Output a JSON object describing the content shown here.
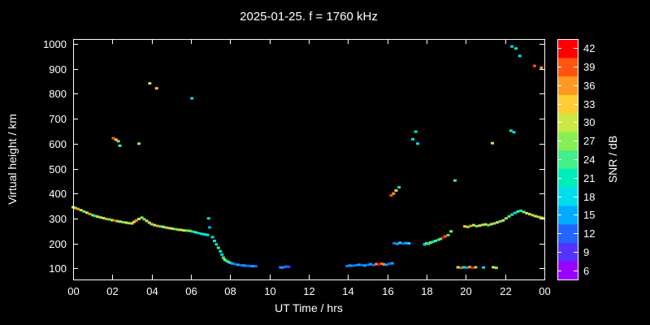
{
  "chart_data": {
    "type": "scatter",
    "title": "2025-01-25. f = 1760 kHz",
    "xlabel": "UT Time / hrs",
    "ylabel": "Virtual height / km",
    "background": "#000000",
    "text_color": "#ffffff",
    "xlim": [
      0,
      24
    ],
    "ylim_km": [
      55,
      1020
    ],
    "x_ticks": [
      {
        "label": "00",
        "value": 0
      },
      {
        "label": "02",
        "value": 2
      },
      {
        "label": "04",
        "value": 4
      },
      {
        "label": "06",
        "value": 6
      },
      {
        "label": "08",
        "value": 8
      },
      {
        "label": "10",
        "value": 10
      },
      {
        "label": "12",
        "value": 12
      },
      {
        "label": "14",
        "value": 14
      },
      {
        "label": "16",
        "value": 16
      },
      {
        "label": "18",
        "value": 18
      },
      {
        "label": "20",
        "value": 20
      },
      {
        "label": "22",
        "value": 22
      },
      {
        "label": "00",
        "value": 24
      }
    ],
    "y_ticks": [
      100,
      200,
      300,
      400,
      500,
      600,
      700,
      800,
      900,
      1000
    ],
    "colorbar": {
      "label": "SNR / dB",
      "ticks": [
        6,
        9,
        12,
        15,
        18,
        21,
        24,
        27,
        30,
        33,
        36,
        39,
        42
      ],
      "range": [
        4.5,
        43.5
      ],
      "colors": [
        "#9900ff",
        "#5533ff",
        "#2266ff",
        "#00aaff",
        "#00ddee",
        "#00eebb",
        "#44ee88",
        "#88ee55",
        "#cce844",
        "#ffcc33",
        "#ff9922",
        "#ff5511",
        "#ff0000"
      ]
    },
    "points": [
      [
        0.0,
        345,
        33
      ],
      [
        0.12,
        342,
        27
      ],
      [
        0.25,
        338,
        36
      ],
      [
        0.4,
        333,
        30
      ],
      [
        0.55,
        328,
        24
      ],
      [
        0.7,
        323,
        30
      ],
      [
        0.85,
        318,
        36
      ],
      [
        1.0,
        313,
        27
      ],
      [
        1.12,
        310,
        21
      ],
      [
        1.25,
        307,
        33
      ],
      [
        1.4,
        304,
        27
      ],
      [
        1.55,
        301,
        30
      ],
      [
        1.7,
        298,
        36
      ],
      [
        1.85,
        296,
        24
      ],
      [
        2.0,
        293,
        30
      ],
      [
        2.12,
        291,
        39
      ],
      [
        2.25,
        289,
        27
      ],
      [
        2.4,
        287,
        33
      ],
      [
        2.55,
        285,
        24
      ],
      [
        2.7,
        283,
        30
      ],
      [
        2.85,
        281,
        27
      ],
      [
        3.0,
        280,
        33
      ],
      [
        3.1,
        286,
        30
      ],
      [
        3.22,
        292,
        36
      ],
      [
        3.35,
        298,
        33
      ],
      [
        3.5,
        303,
        27
      ],
      [
        3.62,
        297,
        24
      ],
      [
        3.75,
        290,
        30
      ],
      [
        3.88,
        283,
        33
      ],
      [
        4.0,
        277,
        27
      ],
      [
        4.15,
        273,
        30
      ],
      [
        4.3,
        270,
        36
      ],
      [
        4.45,
        268,
        24
      ],
      [
        4.6,
        266,
        30
      ],
      [
        4.75,
        263,
        27
      ],
      [
        4.9,
        261,
        33
      ],
      [
        5.05,
        259,
        30
      ],
      [
        5.2,
        257,
        24
      ],
      [
        5.35,
        255,
        27
      ],
      [
        5.5,
        254,
        33
      ],
      [
        5.65,
        252,
        30
      ],
      [
        5.8,
        251,
        24
      ],
      [
        5.95,
        250,
        27
      ],
      [
        6.1,
        247,
        21
      ],
      [
        6.25,
        244,
        24
      ],
      [
        6.4,
        241,
        18
      ],
      [
        6.55,
        238,
        21
      ],
      [
        6.7,
        236,
        18
      ],
      [
        6.85,
        234,
        21
      ],
      [
        6.9,
        300,
        18
      ],
      [
        6.95,
        264,
        15
      ],
      [
        7.1,
        225,
        18
      ],
      [
        7.2,
        210,
        21
      ],
      [
        7.3,
        196,
        18
      ],
      [
        7.4,
        182,
        24
      ],
      [
        7.5,
        168,
        21
      ],
      [
        7.58,
        155,
        18
      ],
      [
        7.65,
        143,
        24
      ],
      [
        7.72,
        135,
        27
      ],
      [
        7.8,
        130,
        21
      ],
      [
        7.9,
        126,
        24
      ],
      [
        8.0,
        122,
        18
      ],
      [
        8.12,
        119,
        15
      ],
      [
        8.25,
        116,
        12
      ],
      [
        8.4,
        114,
        15
      ],
      [
        8.55,
        112,
        12
      ],
      [
        8.7,
        111,
        15
      ],
      [
        8.85,
        110,
        12
      ],
      [
        9.0,
        109,
        12
      ],
      [
        9.15,
        108,
        15
      ],
      [
        9.3,
        108,
        12
      ],
      [
        10.55,
        104,
        12
      ],
      [
        10.65,
        103,
        15
      ],
      [
        10.78,
        105,
        12
      ],
      [
        10.88,
        107,
        12
      ],
      [
        10.98,
        106,
        9
      ],
      [
        13.95,
        109,
        12
      ],
      [
        14.1,
        111,
        15
      ],
      [
        14.25,
        110,
        12
      ],
      [
        14.4,
        112,
        12
      ],
      [
        14.55,
        114,
        15
      ],
      [
        14.7,
        113,
        12
      ],
      [
        14.85,
        111,
        15
      ],
      [
        15.0,
        114,
        12
      ],
      [
        15.15,
        116,
        15
      ],
      [
        15.3,
        113,
        12
      ],
      [
        15.45,
        117,
        36
      ],
      [
        15.58,
        115,
        42
      ],
      [
        15.7,
        119,
        39
      ],
      [
        15.82,
        116,
        36
      ],
      [
        15.95,
        114,
        15
      ],
      [
        16.1,
        118,
        12
      ],
      [
        16.25,
        120,
        15
      ],
      [
        16.2,
        392,
        39
      ],
      [
        16.32,
        400,
        36
      ],
      [
        16.45,
        412,
        33
      ],
      [
        16.6,
        425,
        21
      ],
      [
        16.35,
        200,
        12
      ],
      [
        16.5,
        198,
        15
      ],
      [
        16.65,
        202,
        18
      ],
      [
        16.8,
        199,
        12
      ],
      [
        16.95,
        201,
        15
      ],
      [
        17.1,
        200,
        18
      ],
      [
        17.3,
        618,
        18
      ],
      [
        17.45,
        648,
        21
      ],
      [
        17.55,
        600,
        18
      ],
      [
        17.9,
        196,
        18
      ],
      [
        18.0,
        200,
        24
      ],
      [
        18.1,
        198,
        21
      ],
      [
        18.2,
        203,
        27
      ],
      [
        18.32,
        206,
        18
      ],
      [
        18.45,
        210,
        24
      ],
      [
        18.6,
        214,
        21
      ],
      [
        18.72,
        218,
        27
      ],
      [
        18.85,
        224,
        42
      ],
      [
        18.95,
        228,
        39
      ],
      [
        19.1,
        233,
        24
      ],
      [
        19.25,
        248,
        27
      ],
      [
        19.45,
        452,
        24
      ],
      [
        19.6,
        104,
        30
      ],
      [
        19.75,
        102,
        39
      ],
      [
        19.9,
        104,
        21
      ],
      [
        20.05,
        103,
        15
      ],
      [
        20.2,
        105,
        36
      ],
      [
        20.35,
        102,
        42
      ],
      [
        20.5,
        104,
        27
      ],
      [
        20.9,
        103,
        18
      ],
      [
        21.4,
        104,
        30
      ],
      [
        21.55,
        102,
        27
      ],
      [
        19.95,
        268,
        33
      ],
      [
        20.1,
        266,
        27
      ],
      [
        20.25,
        270,
        36
      ],
      [
        20.4,
        273,
        30
      ],
      [
        20.55,
        269,
        24
      ],
      [
        20.7,
        271,
        33
      ],
      [
        20.85,
        274,
        27
      ],
      [
        21.0,
        276,
        30
      ],
      [
        21.15,
        273,
        24
      ],
      [
        21.3,
        277,
        33
      ],
      [
        21.45,
        280,
        27
      ],
      [
        21.6,
        284,
        30
      ],
      [
        21.75,
        288,
        24
      ],
      [
        21.9,
        292,
        33
      ],
      [
        22.05,
        300,
        27
      ],
      [
        22.2,
        308,
        24
      ],
      [
        22.35,
        315,
        21
      ],
      [
        22.5,
        322,
        18
      ],
      [
        22.65,
        328,
        24
      ],
      [
        22.8,
        331,
        21
      ],
      [
        22.95,
        326,
        27
      ],
      [
        23.1,
        321,
        30
      ],
      [
        23.25,
        317,
        33
      ],
      [
        23.4,
        313,
        27
      ],
      [
        23.55,
        309,
        30
      ],
      [
        23.7,
        306,
        27
      ],
      [
        23.85,
        303,
        33
      ],
      [
        23.95,
        300,
        30
      ],
      [
        21.35,
        602,
        30
      ],
      [
        22.3,
        652,
        21
      ],
      [
        22.45,
        646,
        18
      ],
      [
        22.35,
        990,
        18
      ],
      [
        22.55,
        982,
        21
      ],
      [
        22.75,
        952,
        18
      ],
      [
        23.5,
        912,
        39
      ],
      [
        23.85,
        905,
        36
      ],
      [
        2.05,
        622,
        39
      ],
      [
        2.18,
        616,
        33
      ],
      [
        2.3,
        610,
        27
      ],
      [
        2.38,
        592,
        24
      ],
      [
        3.35,
        600,
        27
      ],
      [
        3.9,
        842,
        30
      ],
      [
        4.25,
        822,
        33
      ],
      [
        6.05,
        782,
        18
      ]
    ]
  }
}
